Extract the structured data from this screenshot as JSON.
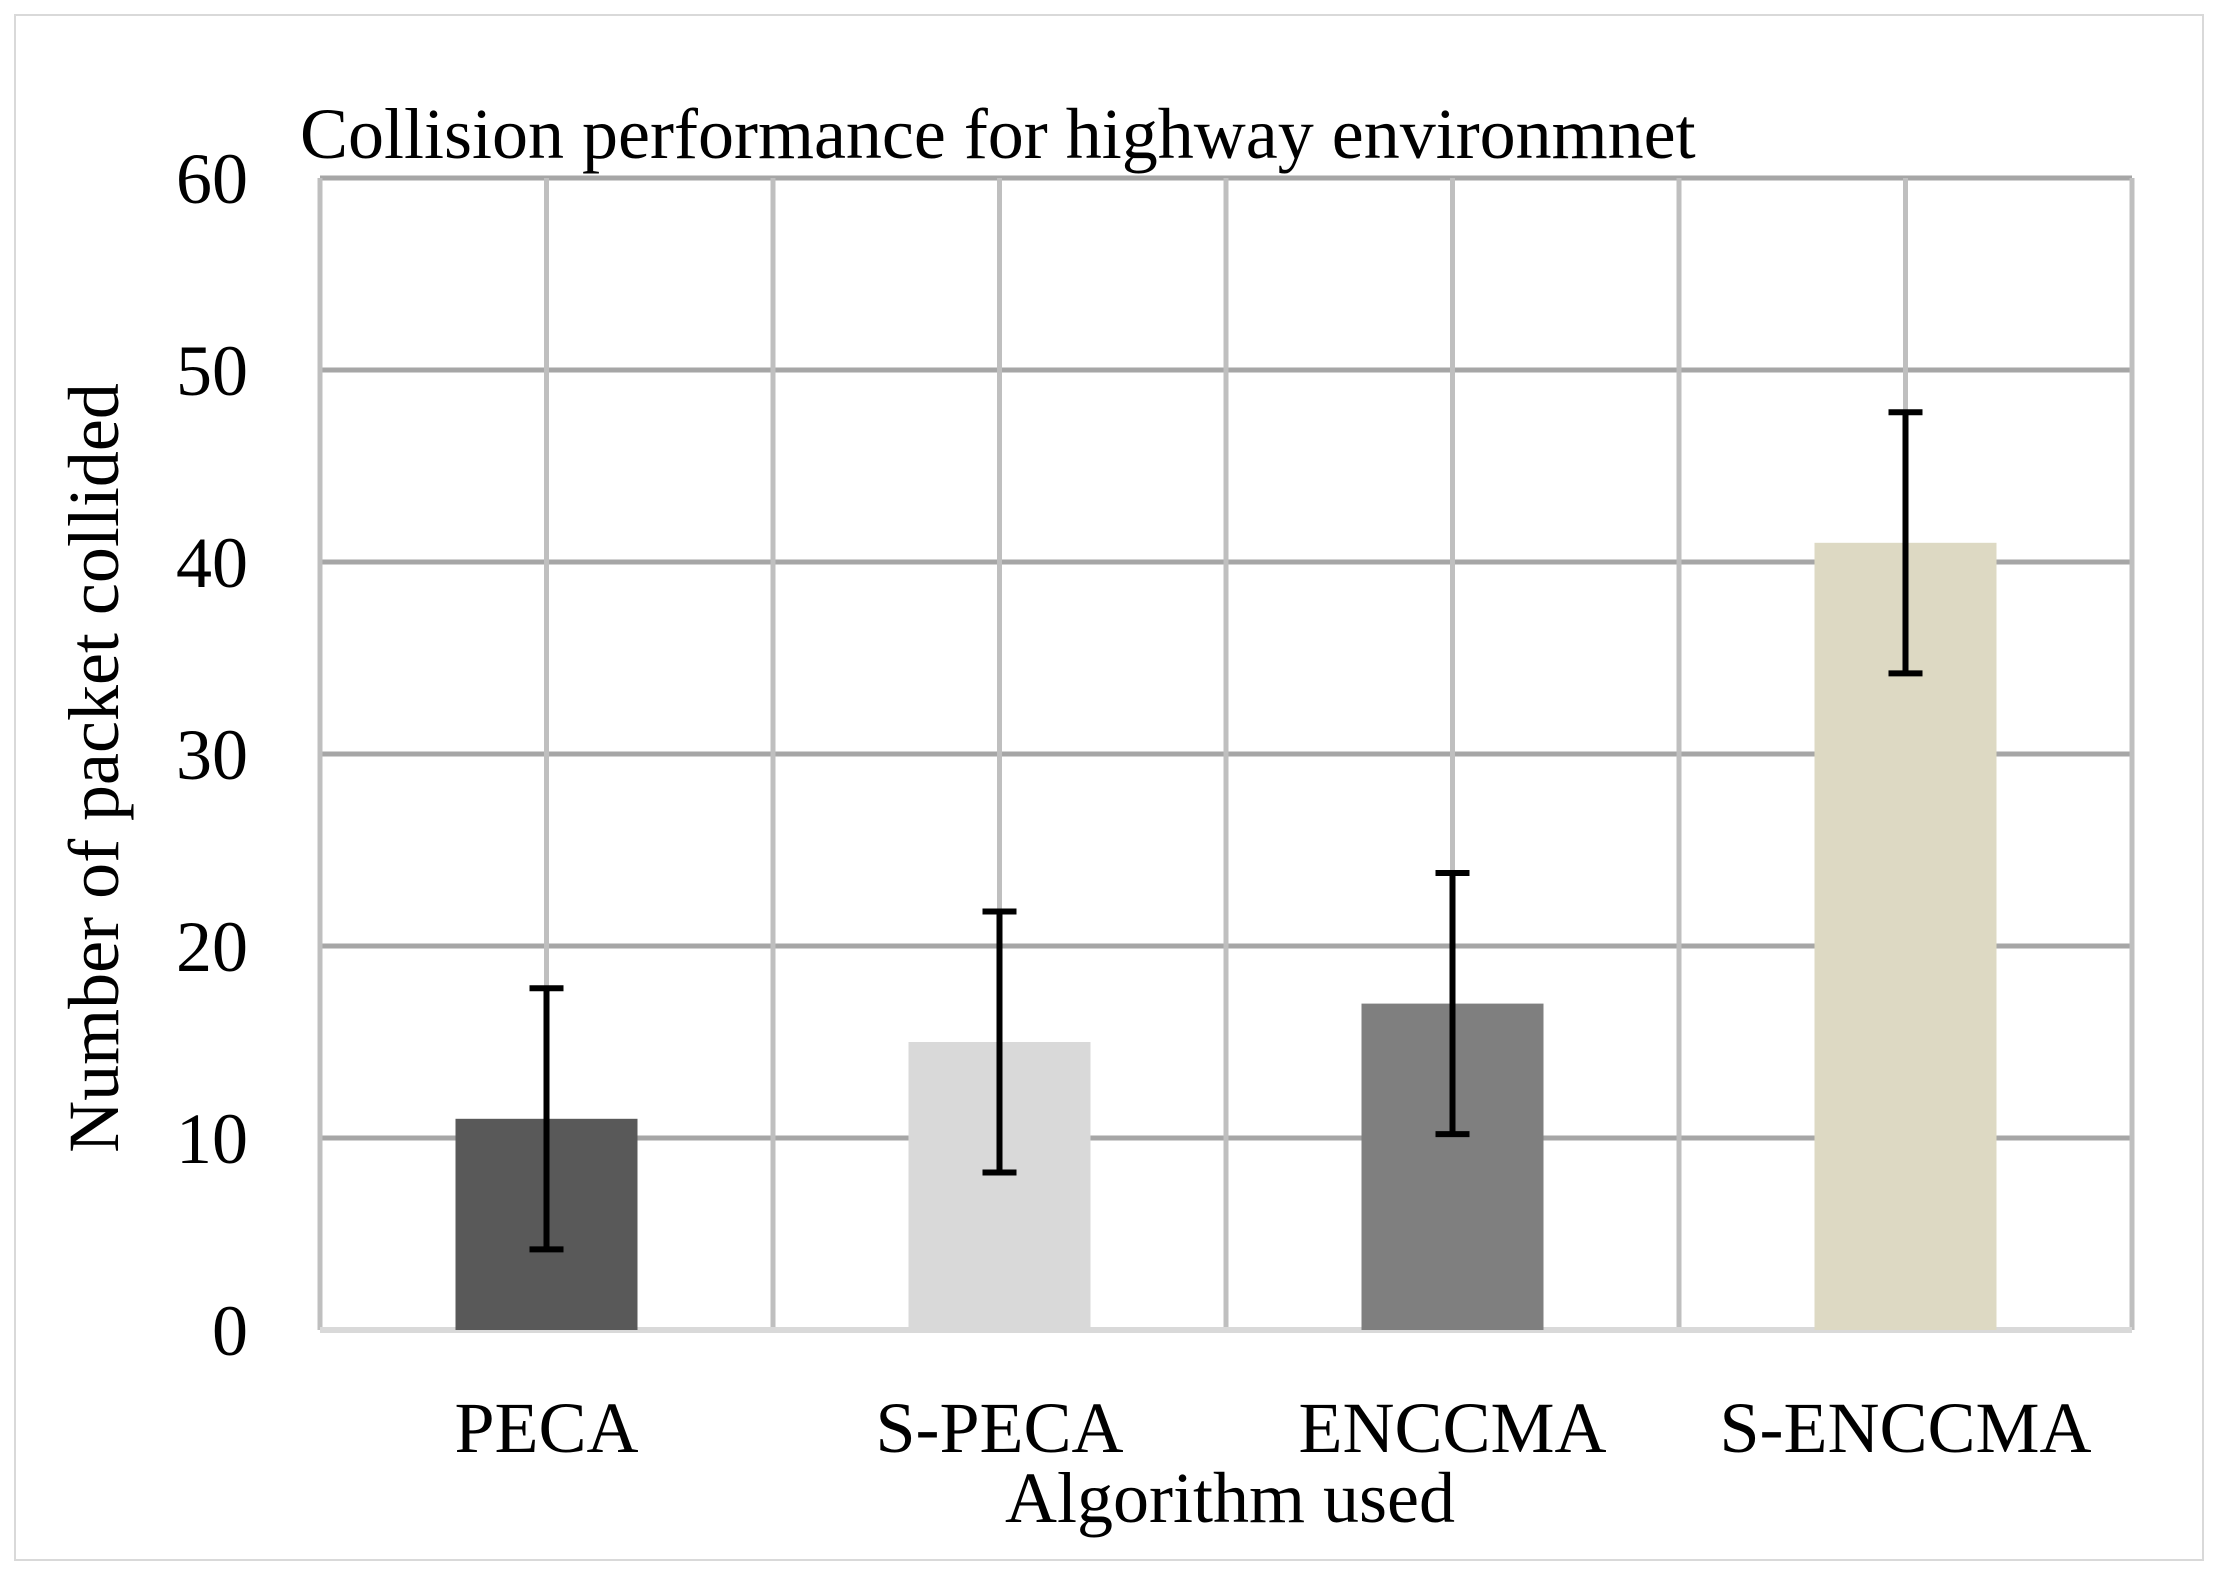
{
  "chart_data": {
    "type": "bar",
    "title": "Collision performance for highway environmnet",
    "xlabel": "Algorithm used",
    "ylabel": "Number of packet collided",
    "categories": [
      "PECA",
      "S-PECA",
      "ENCCMA",
      "S-ENCCMA"
    ],
    "values": [
      11,
      15,
      17,
      41
    ],
    "error_low": [
      4.2,
      8.2,
      10.2,
      34.2
    ],
    "error_high": [
      17.8,
      21.8,
      23.8,
      47.8
    ],
    "bar_colors": [
      "#595959",
      "#d9d9d9",
      "#7f7f7f",
      "#ddd9c3"
    ],
    "ylim": [
      0,
      60
    ],
    "yticks": [
      0,
      10,
      20,
      30,
      40,
      50,
      60
    ],
    "grid": true,
    "legend": "none"
  }
}
